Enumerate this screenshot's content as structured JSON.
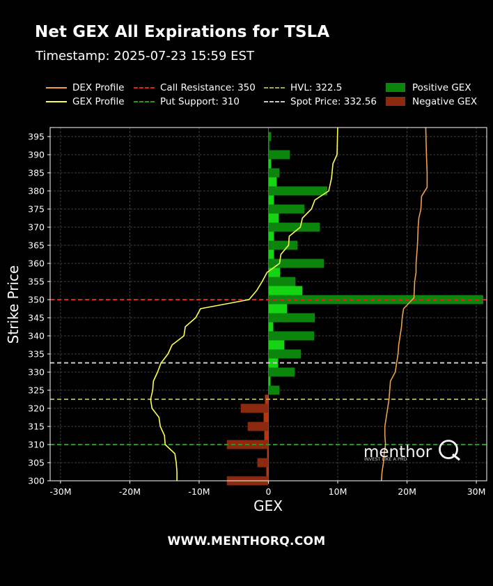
{
  "title": "Net GEX All Expirations for TSLA",
  "subtitle": "Timestamp: 2025-07-23 15:59 EST",
  "footer": "WWW.MENTHORQ.COM",
  "watermark": {
    "brand": "menthor",
    "logo_icon": "q-logo-icon",
    "tagline": "INVEST LIKE A PRO"
  },
  "legend": [
    {
      "label": "DEX Profile",
      "style": "line",
      "color": "#f0a050"
    },
    {
      "label": "GEX Profile",
      "style": "line",
      "color": "#ffff55"
    },
    {
      "label": "Call Resistance: 350",
      "style": "dash",
      "color": "#e02020"
    },
    {
      "label": "Put Support: 310",
      "style": "dash",
      "color": "#1f9a1f"
    },
    {
      "label": "HVL: 322.5",
      "style": "dash",
      "color": "#a6a64c"
    },
    {
      "label": "Spot Price: 332.56",
      "style": "dash",
      "color": "#c8c8c8"
    },
    {
      "label": "Positive GEX",
      "style": "box",
      "color": "#0c850c"
    },
    {
      "label": "Negative GEX",
      "style": "box",
      "color": "#8b2a0e"
    }
  ],
  "colors": {
    "positive_bar": "#0c850c",
    "positive_bar_light": "#14d414",
    "negative_bar": "#8b2a0e",
    "negative_bar_light": "#b8360f",
    "gex_line": "#ffff55",
    "dex_line": "#f0a050",
    "call_resistance": "#e02020",
    "put_support": "#1f9a1f",
    "hvl": "#a6a64c",
    "spot": "#c8c8c8",
    "grid": "#555555"
  },
  "chart_data": {
    "type": "bar",
    "orientation": "horizontal",
    "xlabel": "GEX",
    "ylabel": "Strike Price",
    "xlim": [
      -31500000,
      31500000
    ],
    "ylim": [
      300,
      397.5
    ],
    "xticks": [
      -30000000,
      -20000000,
      -10000000,
      0,
      10000000,
      20000000,
      30000000
    ],
    "xtick_labels": [
      "-30M",
      "-20M",
      "-10M",
      "0",
      "10M",
      "20M",
      "30M"
    ],
    "yticks": [
      300,
      305,
      310,
      315,
      320,
      325,
      330,
      335,
      340,
      345,
      350,
      355,
      360,
      365,
      370,
      375,
      380,
      385,
      390,
      395
    ],
    "grid": true,
    "bar_series": [
      {
        "name": "Positive GEX",
        "strikes": [
          395,
          390,
          385,
          380,
          375,
          370,
          365,
          360,
          355,
          350,
          345,
          340,
          335,
          330,
          325
        ],
        "values": [
          400000,
          3100000,
          1600000,
          8500000,
          5200000,
          7400000,
          4200000,
          8000000,
          3900000,
          31000000,
          6700000,
          6600000,
          4700000,
          3800000,
          1600000
        ]
      },
      {
        "name": "Positive GEX",
        "strikes": [
          392.5,
          387.5,
          382.5,
          377.5,
          372.5,
          367.5,
          362.5,
          357.5,
          352.5,
          347.5,
          342.5,
          337.5,
          332.5,
          327.5
        ],
        "values": [
          100000,
          400000,
          1200000,
          800000,
          1500000,
          800000,
          800000,
          1700000,
          4900000,
          2700000,
          700000,
          2300000,
          1400000,
          300000
        ],
        "shade": "light"
      },
      {
        "name": "Negative GEX",
        "strikes": [
          320,
          315,
          310,
          305,
          300
        ],
        "values": [
          -4000000,
          -3000000,
          -6000000,
          -1600000,
          -6000000
        ]
      },
      {
        "name": "Negative GEX",
        "strikes": [
          322.5,
          317.5,
          312.5,
          307.5,
          302.5
        ],
        "values": [
          -500000,
          -700000,
          -600000,
          -200000,
          -300000
        ],
        "shade": "light"
      }
    ],
    "line_series": [
      {
        "name": "GEX Profile",
        "points": [
          [
            10000000,
            397.5
          ],
          [
            9900000,
            390
          ],
          [
            9300000,
            387.5
          ],
          [
            9100000,
            383.5
          ],
          [
            8700000,
            380
          ],
          [
            6700000,
            377.5
          ],
          [
            6200000,
            375
          ],
          [
            4900000,
            372.5
          ],
          [
            4600000,
            370
          ],
          [
            3000000,
            367.5
          ],
          [
            2900000,
            365
          ],
          [
            1800000,
            362.5
          ],
          [
            1600000,
            360
          ],
          [
            -200000,
            357.5
          ],
          [
            -900000,
            355
          ],
          [
            -1700000,
            352.5
          ],
          [
            -2800000,
            350
          ],
          [
            -9800000,
            347.5
          ],
          [
            -10500000,
            345
          ],
          [
            -12000000,
            342.5
          ],
          [
            -12200000,
            340
          ],
          [
            -12200000,
            340
          ],
          [
            -13900000,
            337.5
          ],
          [
            -14500000,
            335
          ],
          [
            -15500000,
            332.5
          ],
          [
            -16000000,
            330
          ],
          [
            -16600000,
            327.5
          ],
          [
            -16700000,
            325
          ],
          [
            -17000000,
            322.5
          ],
          [
            -16800000,
            320
          ],
          [
            -15800000,
            317.5
          ],
          [
            -15800000,
            317.5
          ],
          [
            -15600000,
            315
          ],
          [
            -15000000,
            312.5
          ],
          [
            -15000000,
            312.5
          ],
          [
            -15000000,
            312.5
          ],
          [
            -14900000,
            310
          ],
          [
            -13500000,
            307.5
          ],
          [
            -13300000,
            305
          ],
          [
            -13200000,
            302.5
          ],
          [
            -13200000,
            300
          ]
        ]
      },
      {
        "name": "DEX Profile",
        "points": [
          [
            22700000,
            397.5
          ],
          [
            22800000,
            390
          ],
          [
            22900000,
            385
          ],
          [
            22900000,
            381
          ],
          [
            22100000,
            378.5
          ],
          [
            22000000,
            375
          ],
          [
            21700000,
            372.5
          ],
          [
            21600000,
            370
          ],
          [
            21500000,
            365
          ],
          [
            21300000,
            360
          ],
          [
            21300000,
            357.5
          ],
          [
            21100000,
            355
          ],
          [
            21000000,
            350.5
          ],
          [
            19500000,
            347.5
          ],
          [
            19300000,
            345
          ],
          [
            19200000,
            342.5
          ],
          [
            19000000,
            340
          ],
          [
            18800000,
            337.5
          ],
          [
            18700000,
            335
          ],
          [
            18500000,
            332.5
          ],
          [
            18300000,
            330
          ],
          [
            17600000,
            327.5
          ],
          [
            17500000,
            325
          ],
          [
            17400000,
            322.5
          ],
          [
            17200000,
            320
          ],
          [
            17000000,
            317.5
          ],
          [
            16800000,
            315
          ],
          [
            16800000,
            312.5
          ],
          [
            16900000,
            310
          ],
          [
            16700000,
            307.5
          ],
          [
            16600000,
            305
          ],
          [
            16400000,
            302.5
          ],
          [
            16300000,
            300
          ]
        ]
      }
    ],
    "reference_lines": [
      {
        "name": "Call Resistance",
        "value": 350,
        "color": "#e02020"
      },
      {
        "name": "Put Support",
        "value": 310,
        "color": "#1f9a1f"
      },
      {
        "name": "HVL",
        "value": 322.5,
        "color": "#a6a64c"
      },
      {
        "name": "Spot Price",
        "value": 332.56,
        "color": "#c8c8c8"
      }
    ]
  }
}
